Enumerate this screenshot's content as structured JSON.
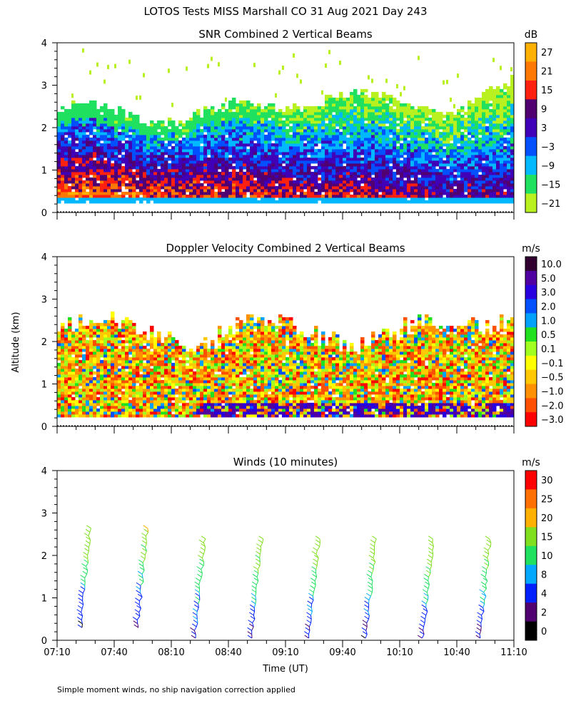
{
  "figure": {
    "title": "LOTOS Tests MISS Marshall CO  31 Aug 2021 Day 243",
    "ylabel": "Altitude (km)",
    "xlabel": "Time (UT)",
    "footnote": "Simple moment winds, no ship navigation correction applied"
  },
  "chart_data": [
    {
      "type": "heatmap",
      "title": "SNR Combined 2 Vertical Beams",
      "units": "dB",
      "ylim": [
        0,
        4
      ],
      "yticks": [
        "0",
        "1",
        "2",
        "3",
        "4"
      ],
      "colorbar": {
        "labels": [
          "27",
          "21",
          "15",
          "9",
          "3",
          "−3",
          "−9",
          "−15",
          "−21"
        ],
        "colors": [
          "#ffb000",
          "#ff7800",
          "#ff2010",
          "#500070",
          "#4000b8",
          "#0050ff",
          "#00b8ff",
          "#20e060",
          "#b8f020"
        ]
      }
    },
    {
      "type": "heatmap",
      "title": "Doppler Velocity Combined 2 Vertical Beams",
      "units": "m/s",
      "ylim": [
        0,
        4
      ],
      "yticks": [
        "0",
        "1",
        "2",
        "3",
        "4"
      ],
      "colorbar": {
        "labels": [
          "10.0",
          "5.0",
          "3.0",
          "2.0",
          "1.0",
          "0.5",
          "0.1",
          "−0.1",
          "−0.5",
          "−1.0",
          "−2.0",
          "−3.0"
        ],
        "colors": [
          "#300030",
          "#5000a0",
          "#2800e0",
          "#0050ff",
          "#00a0ff",
          "#20e020",
          "#a0ff20",
          "#ffff00",
          "#ffc800",
          "#ff9000",
          "#ff5000",
          "#ff0000"
        ]
      }
    },
    {
      "type": "scatter",
      "title": "Winds (10 minutes)",
      "units": "m/s",
      "ylim": [
        0,
        4
      ],
      "yticks": [
        "0",
        "1",
        "2",
        "3",
        "4"
      ],
      "xticks": [
        "07:10",
        "07:40",
        "08:10",
        "08:40",
        "09:10",
        "09:40",
        "10:10",
        "10:40",
        "11:10"
      ],
      "xlim": [
        "07:10",
        "11:10"
      ],
      "profile_times": [
        "07:25",
        "07:55",
        "08:25",
        "08:55",
        "09:25",
        "09:55",
        "10:25",
        "10:55"
      ],
      "colorbar": {
        "labels": [
          "30",
          "25",
          "20",
          "15",
          "10",
          "8",
          "4",
          "2",
          "0"
        ],
        "colors": [
          "#ff0000",
          "#ff7000",
          "#ffb000",
          "#80e020",
          "#20e060",
          "#00a8ff",
          "#0020ff",
          "#500070",
          "#000000"
        ]
      }
    }
  ]
}
